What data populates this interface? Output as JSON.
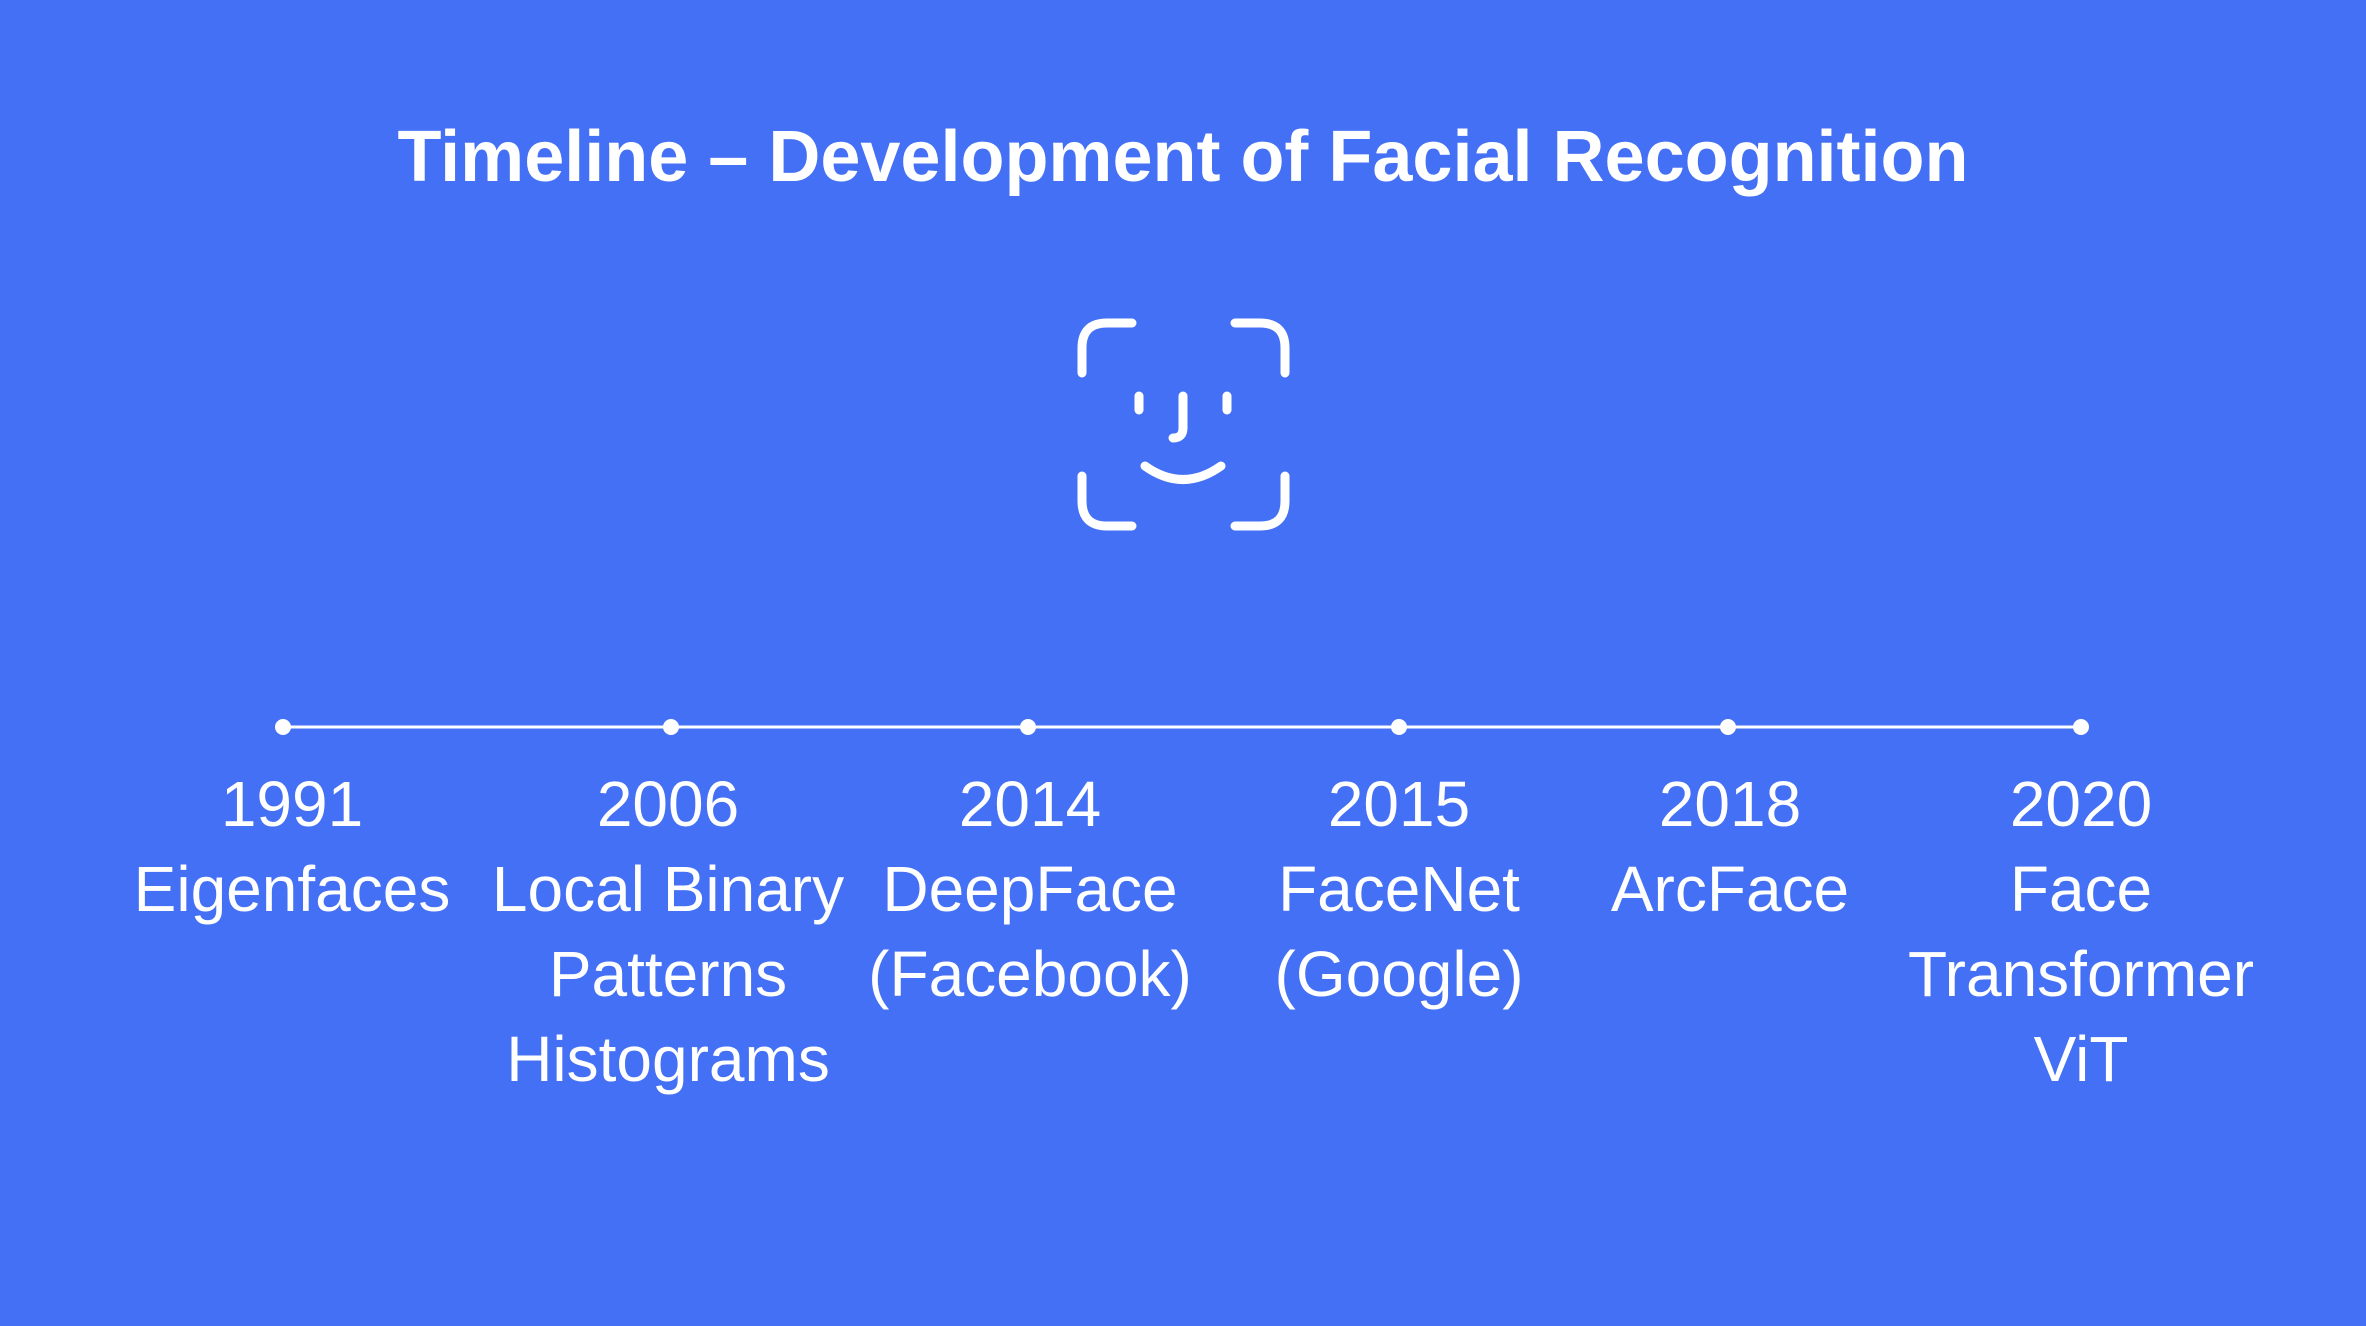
{
  "title": "Timeline – Development of Facial Recognition",
  "icon": "face-id-icon",
  "colors": {
    "background": "#4470F5",
    "foreground": "#FFFFFF"
  },
  "milestones": [
    {
      "year": "1991",
      "label": "Eigenfaces"
    },
    {
      "year": "2006",
      "label": "Local Binary\nPatterns\nHistograms"
    },
    {
      "year": "2014",
      "label": "DeepFace\n(Facebook)"
    },
    {
      "year": "2015",
      "label": "FaceNet\n(Google)"
    },
    {
      "year": "2018",
      "label": "ArcFace"
    },
    {
      "year": "2020",
      "label": "Face\nTransformer\nViT"
    }
  ]
}
